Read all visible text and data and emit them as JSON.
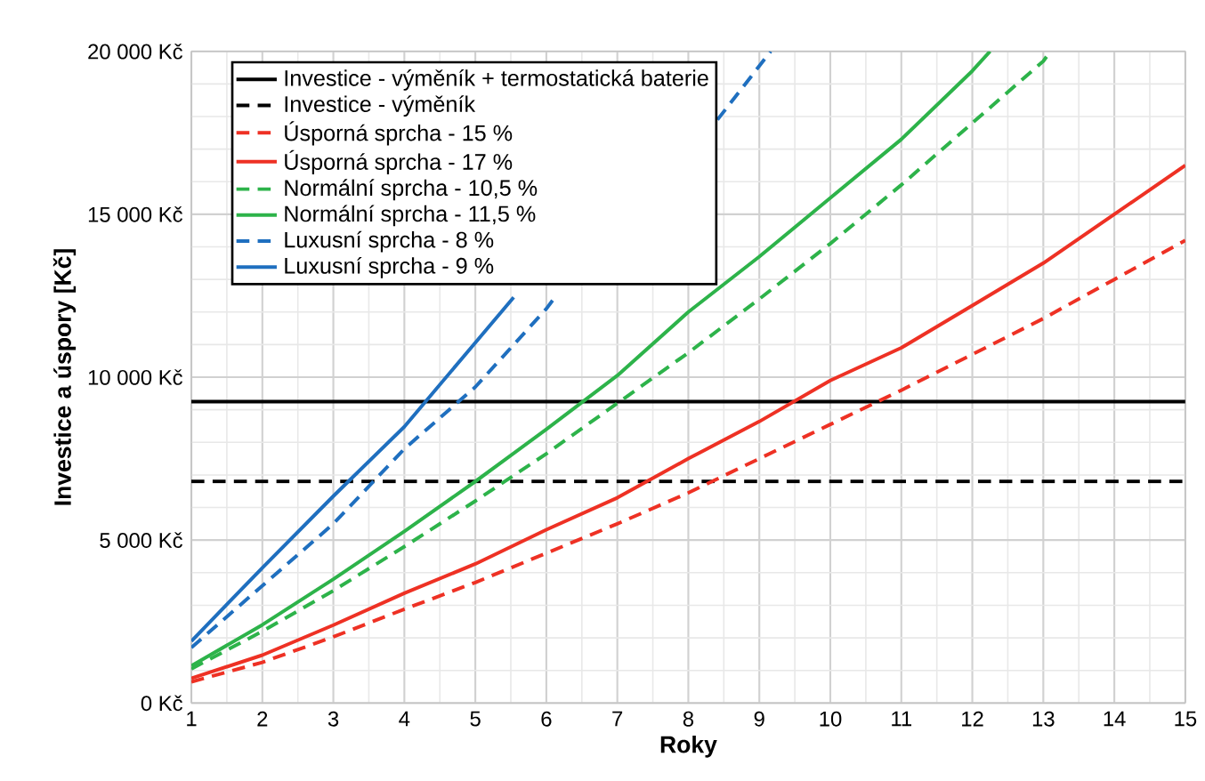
{
  "chart_data": {
    "type": "line",
    "xlabel": "Roky",
    "ylabel": "Investice a úspory [Kč]",
    "xlim": [
      1,
      15
    ],
    "ylim": [
      0,
      20000
    ],
    "xticks": [
      1,
      2,
      3,
      4,
      5,
      6,
      7,
      8,
      9,
      10,
      11,
      12,
      13,
      14,
      15
    ],
    "yticks": [
      {
        "value": 0,
        "label": "0 Kč"
      },
      {
        "value": 5000,
        "label": "5 000 Kč"
      },
      {
        "value": 10000,
        "label": "10 000 Kč"
      },
      {
        "value": 15000,
        "label": "15 000 Kč"
      },
      {
        "value": 20000,
        "label": "20 000 Kč"
      }
    ],
    "grid": true,
    "legend": "top left",
    "marker": "none",
    "series": [
      {
        "name": "Investice - výměník + termostatická baterie",
        "color": "#000000",
        "line_style": "solid",
        "x": [
          1,
          15
        ],
        "values": [
          9250,
          9250
        ]
      },
      {
        "name": "Investice - výměník",
        "color": "#000000",
        "line_style": "dashed",
        "x": [
          1,
          15
        ],
        "values": [
          6800,
          6800
        ]
      },
      {
        "name": "Úsporná sprcha - 15 %",
        "color": "#ee3124",
        "line_style": "dashed",
        "x": [
          1,
          2,
          3,
          4,
          5,
          6,
          7,
          8,
          9,
          10,
          11,
          12,
          13,
          14,
          15
        ],
        "values": [
          650,
          1250,
          2030,
          2880,
          3700,
          4600,
          5500,
          6450,
          7500,
          8550,
          9600,
          10700,
          11800,
          13000,
          14200
        ]
      },
      {
        "name": "Úsporná sprcha - 17 %",
        "color": "#ee3124",
        "line_style": "solid",
        "x": [
          1,
          2,
          3,
          4,
          5,
          6,
          7,
          8,
          9,
          10,
          11,
          12,
          13,
          14,
          15
        ],
        "values": [
          760,
          1470,
          2390,
          3370,
          4270,
          5320,
          6300,
          7500,
          8640,
          9900,
          10900,
          12200,
          13500,
          15000,
          16500
        ]
      },
      {
        "name": "Normální sprcha - 10,5 %",
        "color": "#2db34a",
        "line_style": "dashed",
        "x": [
          1,
          2,
          3,
          4,
          5,
          6,
          7,
          8,
          9,
          10,
          11,
          12,
          13,
          13.1
        ],
        "values": [
          1050,
          2200,
          3450,
          4800,
          6200,
          7650,
          9200,
          10750,
          12400,
          14100,
          15900,
          17800,
          19700,
          20000
        ]
      },
      {
        "name": "Normální sprcha - 11,5 %",
        "color": "#2db34a",
        "line_style": "solid",
        "x": [
          1,
          2,
          3,
          4,
          5,
          6,
          7,
          8,
          9,
          10,
          11,
          12,
          12.25
        ],
        "values": [
          1140,
          2400,
          3800,
          5270,
          6800,
          8400,
          10050,
          12000,
          13700,
          15500,
          17300,
          19400,
          20000
        ]
      },
      {
        "name": "Luxusní sprcha - 8 %",
        "color": "#1f6fbf",
        "line_style": "dashed",
        "x": [
          1,
          2,
          3,
          4,
          5,
          6,
          6.12,
          7,
          8.41,
          9.16
        ],
        "values": [
          1700,
          3600,
          5500,
          7800,
          9700,
          12100,
          12450,
          null,
          17900,
          20000
        ]
      },
      {
        "name": "Luxusní sprcha - 9 %",
        "color": "#1f6fbf",
        "line_style": "solid",
        "x": [
          1,
          2,
          3,
          4,
          5,
          5.54
        ],
        "values": [
          1900,
          4150,
          6350,
          8480,
          11060,
          12450
        ]
      }
    ]
  }
}
